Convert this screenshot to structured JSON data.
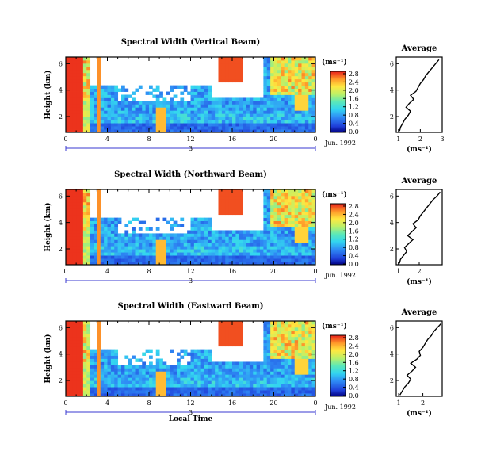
{
  "chart_data": {
    "type": "heatmap",
    "panels": [
      {
        "title": "Spectral Width (Vertical Beam)",
        "ylabel": "Height (km)",
        "yticks": [
          "2",
          "4",
          "6"
        ],
        "xticks": [
          "0",
          "4",
          "8",
          "12",
          "16",
          "20",
          "0"
        ],
        "day_markers": [
          "",
          "3",
          ""
        ],
        "date": "Jun. 1992",
        "colorbar_label": "(ms⁻¹)",
        "colorbar_ticks": [
          "0.0",
          "0.4",
          "0.8",
          "1.2",
          "1.6",
          "2.0",
          "2.4",
          "2.8"
        ],
        "profile": {
          "title": "Average",
          "xlabel": "(ms⁻¹)",
          "xticks": [
            "1",
            "2",
            "3"
          ],
          "yticks": [
            "2",
            "4",
            "6"
          ],
          "xlim": [
            0.9,
            3.0
          ],
          "ylim": [
            0.8,
            6.5
          ],
          "height": [
            0.9,
            1.2,
            1.5,
            1.8,
            2.1,
            2.4,
            2.7,
            3.0,
            3.3,
            3.6,
            3.9,
            4.2,
            4.5,
            4.8,
            5.1,
            5.4,
            5.7,
            6.0,
            6.3
          ],
          "width": [
            1.05,
            1.1,
            1.2,
            1.3,
            1.45,
            1.55,
            1.35,
            1.5,
            1.7,
            1.55,
            1.8,
            1.9,
            2.0,
            2.15,
            2.25,
            2.4,
            2.55,
            2.7,
            2.85
          ]
        }
      },
      {
        "title": "Spectral Width (Northward Beam)",
        "ylabel": "Height (km)",
        "yticks": [
          "2",
          "4",
          "6"
        ],
        "xticks": [
          "0",
          "4",
          "8",
          "12",
          "16",
          "20",
          "0"
        ],
        "day_markers": [
          "",
          "3",
          ""
        ],
        "date": "Jun. 1992",
        "colorbar_label": "(ms⁻¹)",
        "colorbar_ticks": [
          "0.0",
          "0.4",
          "0.8",
          "1.2",
          "1.6",
          "2.0",
          "2.4",
          "2.8"
        ],
        "profile": {
          "title": "Average",
          "xlabel": "(ms⁻¹)",
          "xticks": [
            "1",
            "2"
          ],
          "yticks": [
            "2",
            "4",
            "6"
          ],
          "xlim": [
            0.9,
            3.1
          ],
          "ylim": [
            0.8,
            6.5
          ],
          "height": [
            0.9,
            1.2,
            1.5,
            1.8,
            2.1,
            2.4,
            2.7,
            3.0,
            3.3,
            3.6,
            3.9,
            4.2,
            4.5,
            4.8,
            5.1,
            5.4,
            5.7,
            6.0,
            6.3
          ],
          "width": [
            1.05,
            1.1,
            1.25,
            1.4,
            1.3,
            1.5,
            1.7,
            1.45,
            1.65,
            1.85,
            1.7,
            1.95,
            2.05,
            2.2,
            2.35,
            2.5,
            2.65,
            2.85,
            3.0
          ]
        }
      },
      {
        "title": "Spectral Width (Eastward Beam)",
        "ylabel": "Height (km)",
        "yticks": [
          "2",
          "4",
          "6"
        ],
        "xticks": [
          "0",
          "4",
          "8",
          "12",
          "16",
          "20",
          "0"
        ],
        "day_markers": [
          "",
          "3",
          ""
        ],
        "date": "Jun. 1992",
        "xlabel": "Local Time",
        "colorbar_label": "(ms⁻¹)",
        "colorbar_ticks": [
          "0.0",
          "0.4",
          "0.8",
          "1.2",
          "1.6",
          "2.0",
          "2.4",
          "2.8"
        ],
        "profile": {
          "title": "Average",
          "xlabel": "(ms⁻¹)",
          "xticks": [
            "1",
            "2"
          ],
          "yticks": [
            "2",
            "4",
            "6"
          ],
          "xlim": [
            0.9,
            2.8
          ],
          "ylim": [
            0.8,
            6.5
          ],
          "height": [
            0.9,
            1.2,
            1.5,
            1.8,
            2.1,
            2.4,
            2.7,
            3.0,
            3.3,
            3.6,
            3.9,
            4.2,
            4.5,
            4.8,
            5.1,
            5.4,
            5.7,
            6.0,
            6.3
          ],
          "width": [
            1.05,
            1.15,
            1.25,
            1.4,
            1.5,
            1.35,
            1.55,
            1.7,
            1.5,
            1.75,
            1.9,
            1.85,
            2.0,
            2.1,
            2.2,
            2.35,
            2.45,
            2.6,
            2.75
          ]
        }
      }
    ]
  }
}
